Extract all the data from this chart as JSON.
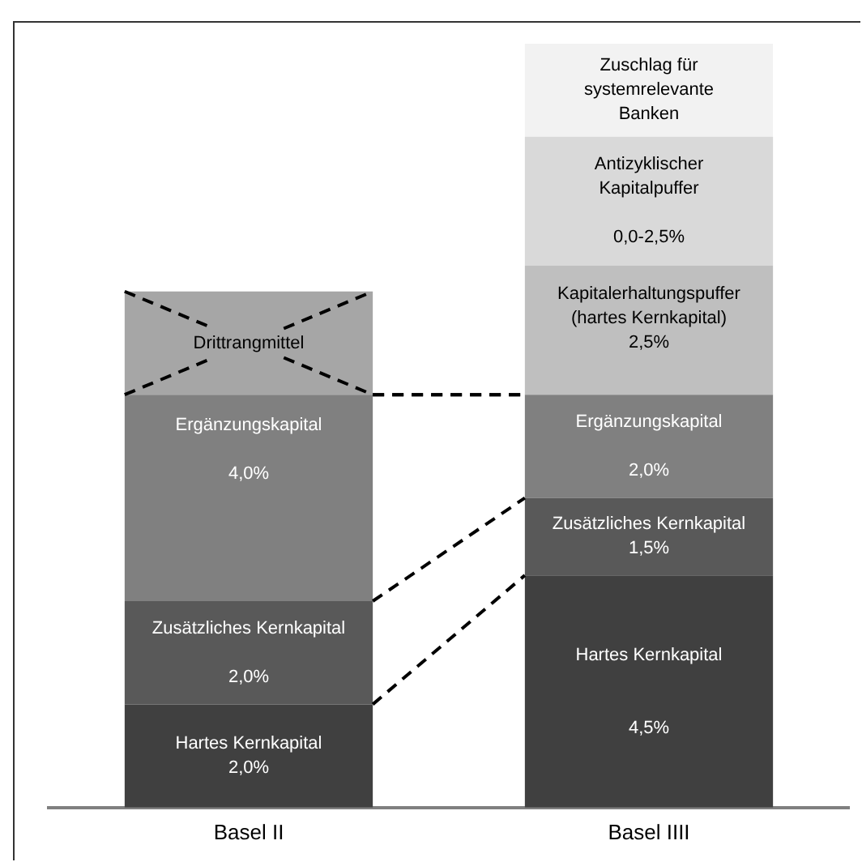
{
  "chart_data": {
    "type": "bar",
    "stacked": true,
    "categories": [
      "Basel II",
      "Basel IIII"
    ],
    "ylim": [
      0,
      14.8
    ],
    "annotations": [
      "Antizyklischer\nKapitalpuffer\n\n0,0-2,5%"
    ],
    "grid": false,
    "legend": false,
    "tick_labels": "x",
    "series": [
      {
        "colors": [
          "#404040",
          "#404040"
        ],
        "values": [
          2.0,
          4.5
        ],
        "value_labels": [
          "Hartes Kernkapital\n2,0%",
          "Hartes Kernkapital\n\n\n4,5%"
        ]
      },
      {
        "colors": [
          "#595959",
          "#595959"
        ],
        "values": [
          2.0,
          1.5
        ],
        "value_labels": [
          "Zusätzliches Kernkapital\n\n2,0%",
          "Zusätzliches Kernkapital\n1,5%"
        ]
      },
      {
        "colors": [
          "#808080",
          "#808080"
        ],
        "values": [
          4.0,
          2.0
        ],
        "value_labels": [
          "Ergänzungskapital\n\n4,0%\n\n\n\n",
          "Ergänzungskapital\n\n2,0%"
        ]
      },
      {
        "colors": [
          "#a6a6a6",
          "#bfbfbf"
        ],
        "values": [
          2.0,
          2.5
        ],
        "value_labels": [
          "Drittrangmittel",
          "Kapitalerhaltungspuffer\n(hartes Kernkapital)\n2,5%\n"
        ]
      },
      {
        "colors": [
          "#d9d9d9",
          "#d9d9d9"
        ],
        "values": [
          null,
          2.5
        ]
      },
      {
        "colors": [
          "#f2f2f2",
          "#f2f2f2"
        ],
        "values": [
          null,
          1.8
        ],
        "value_labels": [
          null,
          "Zuschlag für\nsystemrelevante\nBanken"
        ]
      }
    ]
  }
}
